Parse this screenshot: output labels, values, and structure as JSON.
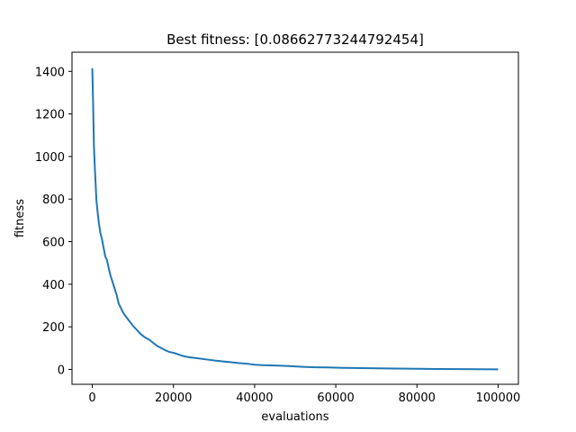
{
  "chart_data": {
    "type": "line",
    "title": "Best fitness: [0.08662773244792454]",
    "xlabel": "evaluations",
    "ylabel": "fitness",
    "xlim": [
      -5000,
      105000
    ],
    "ylim": [
      -70,
      1490
    ],
    "xticks": [
      0,
      20000,
      40000,
      60000,
      80000,
      100000
    ],
    "yticks": [
      0,
      200,
      400,
      600,
      800,
      1000,
      1200,
      1400
    ],
    "grid": false,
    "series": [
      {
        "color": "#1f77b4",
        "x": [
          0,
          200,
          400,
          600,
          800,
          1000,
          1300,
          1600,
          2000,
          2400,
          2800,
          3200,
          3600,
          4000,
          4500,
          5000,
          5500,
          6000,
          6500,
          7000,
          7500,
          8000,
          9000,
          10000,
          11000,
          12000,
          13000,
          14000,
          15000,
          16000,
          17000,
          18000,
          19000,
          20000,
          21000,
          22000,
          23000,
          24000,
          26000,
          28000,
          30000,
          32000,
          34000,
          36000,
          38000,
          40000,
          42000,
          45000,
          48000,
          50000,
          52000,
          55000,
          58000,
          60000,
          63000,
          66000,
          70000,
          75000,
          80000,
          85000,
          90000,
          95000,
          100000
        ],
        "values": [
          1415,
          1250,
          1050,
          960,
          880,
          800,
          740,
          690,
          640,
          610,
          570,
          530,
          515,
          480,
          440,
          410,
          380,
          350,
          310,
          290,
          270,
          255,
          230,
          205,
          185,
          165,
          150,
          140,
          125,
          110,
          100,
          90,
          82,
          78,
          72,
          65,
          60,
          57,
          52,
          47,
          42,
          38,
          34,
          30,
          27,
          22,
          20,
          18,
          16,
          14,
          12,
          10,
          9,
          8,
          7,
          6,
          5,
          4,
          3,
          2,
          1.5,
          1,
          0.09
        ]
      }
    ]
  }
}
